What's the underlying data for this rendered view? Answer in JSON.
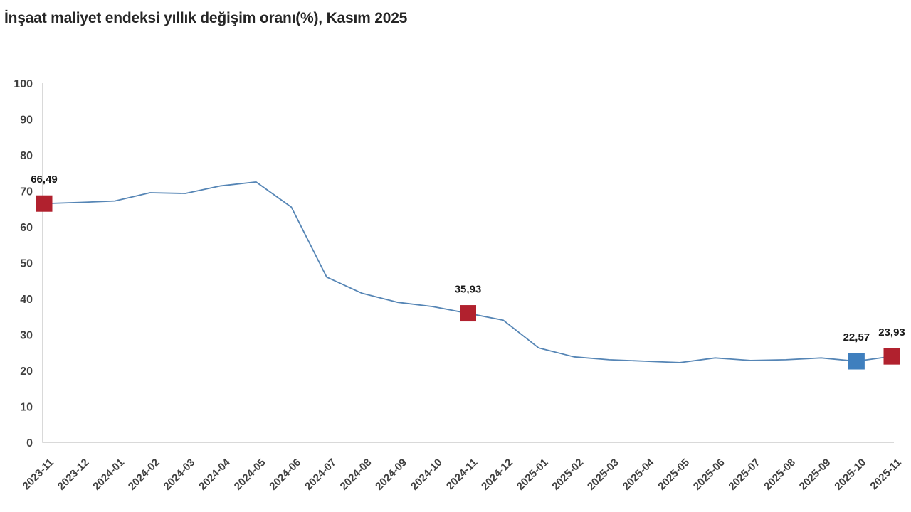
{
  "title": "İnşaat maliyet endeksi yıllık değişim oranı(%), Kasım 2025",
  "colors": {
    "background": "#ffffff",
    "line": "#5585b5",
    "marker_red": "#b1212e",
    "marker_blue": "#3f7fbe",
    "axis": "#d9d9d9",
    "tick_label": "#404040",
    "data_label": "#1a1a1a",
    "title_text": "#262626"
  },
  "chart_data": {
    "type": "line",
    "title": "İnşaat maliyet endeksi yıllık değişim oranı(%), Kasım 2025",
    "xlabel": "",
    "ylabel": "",
    "ylim": [
      0,
      100
    ],
    "yticks": [
      0,
      10,
      20,
      30,
      40,
      50,
      60,
      70,
      80,
      90,
      100
    ],
    "grid": false,
    "legend": "none",
    "decimal_separator": ",",
    "categories": [
      "2023-11",
      "2023-12",
      "2024-01",
      "2024-02",
      "2024-03",
      "2024-04",
      "2024-05",
      "2024-06",
      "2024-07",
      "2024-08",
      "2024-09",
      "2024-10",
      "2024-11",
      "2024-12",
      "2025-01",
      "2025-02",
      "2025-03",
      "2025-04",
      "2025-05",
      "2025-06",
      "2025-07",
      "2025-08",
      "2025-09",
      "2025-10",
      "2025-11"
    ],
    "values": [
      66.49,
      66.8,
      67.2,
      69.5,
      69.3,
      71.4,
      72.5,
      65.5,
      46.0,
      41.5,
      39.0,
      37.8,
      35.93,
      34.0,
      26.3,
      23.8,
      23.0,
      22.6,
      22.2,
      23.5,
      22.8,
      23.0,
      23.5,
      22.57,
      23.93
    ],
    "highlighted_points": [
      {
        "category": "2023-11",
        "index": 0,
        "value": 66.49,
        "label": "66,49",
        "marker_color": "#b1212e"
      },
      {
        "category": "2024-11",
        "index": 12,
        "value": 35.93,
        "label": "35,93",
        "marker_color": "#b1212e"
      },
      {
        "category": "2025-10",
        "index": 23,
        "value": 22.57,
        "label": "22,57",
        "marker_color": "#3f7fbe"
      },
      {
        "category": "2025-11",
        "index": 24,
        "value": 23.93,
        "label": "23,93",
        "marker_color": "#b1212e"
      }
    ]
  }
}
